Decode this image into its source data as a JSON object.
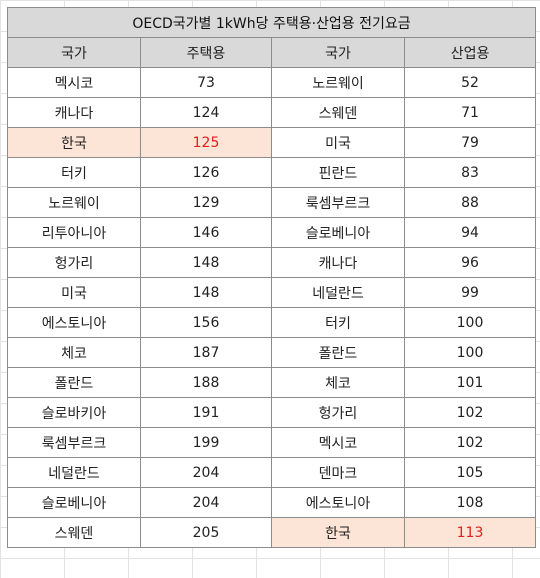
{
  "title": "OECD국가별 1kWh당 주택용·산업용 전기요금",
  "headers": [
    "국가",
    "주택용",
    "국가",
    "산업용"
  ],
  "rows": [
    {
      "c1": "멕시코",
      "v1": "73",
      "c2": "노르웨이",
      "v2": "52"
    },
    {
      "c1": "캐나다",
      "v1": "124",
      "c2": "스웨덴",
      "v2": "71"
    },
    {
      "c1": "한국",
      "v1": "125",
      "c2": "미국",
      "v2": "79",
      "hl_left": true
    },
    {
      "c1": "터키",
      "v1": "126",
      "c2": "핀란드",
      "v2": "83"
    },
    {
      "c1": "노르웨이",
      "v1": "129",
      "c2": "룩셈부르크",
      "v2": "88"
    },
    {
      "c1": "리투아니아",
      "v1": "146",
      "c2": "슬로베니아",
      "v2": "94"
    },
    {
      "c1": "헝가리",
      "v1": "148",
      "c2": "캐나다",
      "v2": "96"
    },
    {
      "c1": "미국",
      "v1": "148",
      "c2": "네덜란드",
      "v2": "99"
    },
    {
      "c1": "에스토니아",
      "v1": "156",
      "c2": "터키",
      "v2": "100"
    },
    {
      "c1": "체코",
      "v1": "187",
      "c2": "폴란드",
      "v2": "100"
    },
    {
      "c1": "폴란드",
      "v1": "188",
      "c2": "체코",
      "v2": "101"
    },
    {
      "c1": "슬로바키아",
      "v1": "191",
      "c2": "헝가리",
      "v2": "102"
    },
    {
      "c1": "룩셈부르크",
      "v1": "199",
      "c2": "멕시코",
      "v2": "102"
    },
    {
      "c1": "네덜란드",
      "v1": "204",
      "c2": "덴마크",
      "v2": "105"
    },
    {
      "c1": "슬로베니아",
      "v1": "204",
      "c2": "에스토니아",
      "v2": "108"
    },
    {
      "c1": "스웨덴",
      "v1": "205",
      "c2": "한국",
      "v2": "113",
      "hl_right": true
    }
  ],
  "colors": {
    "header_bg": "#d9d9d9",
    "highlight_bg": "#fce4d6",
    "highlight_text": "#e02020",
    "border": "#8c8c8c"
  }
}
